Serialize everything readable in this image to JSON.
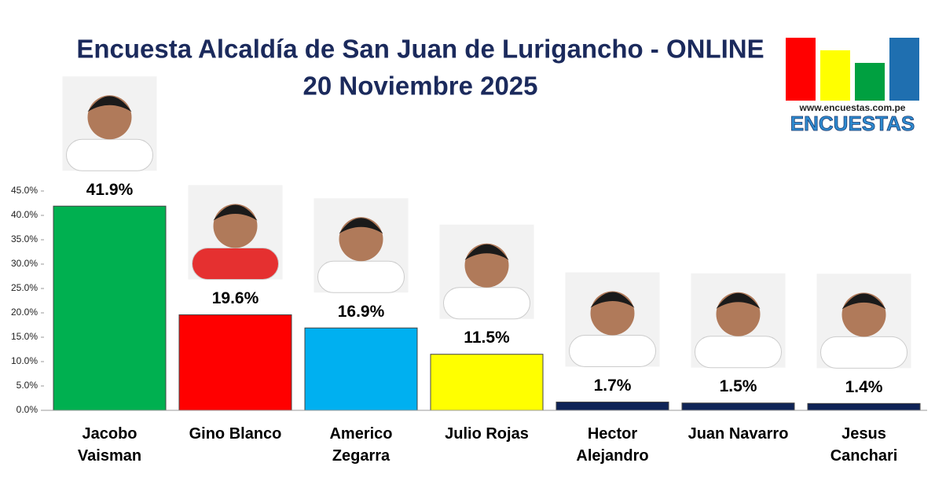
{
  "chart_data": {
    "type": "bar",
    "title": "Encuesta Alcaldía de San Juan de Lurigancho - ONLINE",
    "subtitle": "20 Noviembre 2025",
    "categories": [
      "Jacobo Vaisman",
      "Gino Blanco",
      "Americo Zegarra",
      "Julio Rojas",
      "Hector Alejandro",
      "Juan Navarro",
      "Jesus Canchari"
    ],
    "values": [
      41.9,
      19.6,
      16.9,
      11.5,
      1.7,
      1.5,
      1.4
    ],
    "value_labels": [
      "41.9%",
      "19.6%",
      "16.9%",
      "11.5%",
      "1.7%",
      "1.5%",
      "1.4%"
    ],
    "colors": [
      "#00b050",
      "#ff0000",
      "#00b0f0",
      "#ffff00",
      "#0e2356",
      "#0e2356",
      "#0e2356"
    ],
    "ylim": [
      0,
      45
    ],
    "yticks": [
      {
        "value": 0,
        "label": "0.0%"
      },
      {
        "value": 5,
        "label": "5.0%"
      },
      {
        "value": 10,
        "label": "10.0%"
      },
      {
        "value": 15,
        "label": "15.0%"
      },
      {
        "value": 20,
        "label": "20.0%"
      },
      {
        "value": 25,
        "label": "25.0%"
      },
      {
        "value": 30,
        "label": "30.0%"
      },
      {
        "value": 35,
        "label": "35.0%"
      },
      {
        "value": 40,
        "label": "40.0%"
      },
      {
        "value": 45,
        "label": "45.0%"
      }
    ],
    "grid": false
  },
  "logo": {
    "url": "www.encuestas.com.pe",
    "name": "ENCUESTAS"
  }
}
